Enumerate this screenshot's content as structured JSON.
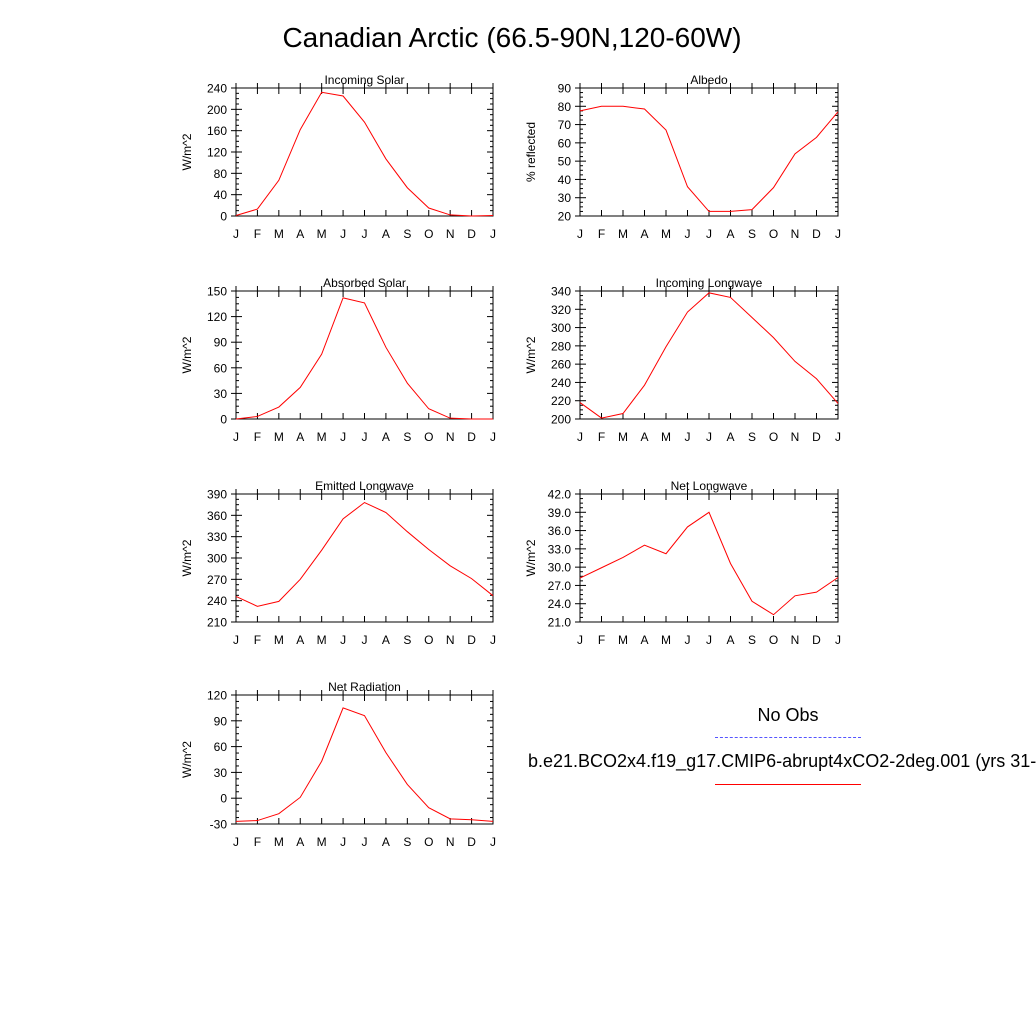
{
  "page": {
    "title": "Canadian Arctic (66.5-90N,120-60W)"
  },
  "legend": {
    "obs_label": "No Obs",
    "model_label": "b.e21.BCO2x4.f19_g17.CMIP6-abrupt4xCO2-2deg.001 (yrs 31-",
    "obs_color": "#5555ff",
    "model_color": "#ff0000"
  },
  "months": [
    "J",
    "F",
    "M",
    "A",
    "M",
    "J",
    "J",
    "A",
    "S",
    "O",
    "N",
    "D",
    "J"
  ],
  "chart_data": [
    {
      "type": "line",
      "title": "Incoming Solar",
      "ylabel": "W/m^2",
      "ylim": [
        0,
        240
      ],
      "yticks": [
        "0",
        "40",
        "80",
        "120",
        "160",
        "200",
        "240"
      ],
      "series": [
        {
          "values": [
            1,
            13,
            67,
            162,
            232,
            225,
            176,
            107,
            53,
            15,
            2,
            0,
            1
          ]
        }
      ]
    },
    {
      "type": "line",
      "title": "Albedo",
      "ylabel": "% reflected",
      "ylim": [
        20,
        90
      ],
      "yticks": [
        "20",
        "30",
        "40",
        "50",
        "60",
        "70",
        "80",
        "90"
      ],
      "series": [
        {
          "values": [
            77.5,
            80,
            80,
            78.5,
            67,
            36,
            22.5,
            22.5,
            23.5,
            35.5,
            54,
            63,
            77
          ]
        }
      ]
    },
    {
      "type": "line",
      "title": "Absorbed Solar",
      "ylabel": "W/m^2",
      "ylim": [
        0,
        150
      ],
      "yticks": [
        "0",
        "30",
        "60",
        "90",
        "120",
        "150"
      ],
      "series": [
        {
          "values": [
            0,
            3,
            14,
            37,
            76,
            142,
            136,
            84,
            42,
            12,
            1,
            0,
            0
          ]
        }
      ]
    },
    {
      "type": "line",
      "title": "Incoming Longwave",
      "ylabel": "W/m^2",
      "ylim": [
        200,
        340
      ],
      "yticks": [
        "200",
        "220",
        "240",
        "260",
        "280",
        "300",
        "320",
        "340"
      ],
      "series": [
        {
          "values": [
            218,
            201,
            206,
            237,
            279,
            317,
            338,
            333,
            311,
            289,
            263,
            244,
            217
          ]
        }
      ]
    },
    {
      "type": "line",
      "title": "Emitted Longwave",
      "ylabel": "W/m^2",
      "ylim": [
        210,
        390
      ],
      "yticks": [
        "210",
        "240",
        "270",
        "300",
        "330",
        "360",
        "390"
      ],
      "series": [
        {
          "values": [
            246,
            232,
            239,
            270,
            311,
            355,
            378,
            364,
            337,
            312,
            289,
            271,
            247
          ]
        }
      ]
    },
    {
      "type": "line",
      "title": "Net Longwave",
      "ylabel": "W/m^2",
      "ylim": [
        21,
        42
      ],
      "yticks": [
        "21.0",
        "24.0",
        "27.0",
        "30.0",
        "33.0",
        "36.0",
        "39.0",
        "42.0"
      ],
      "series": [
        {
          "values": [
            28.2,
            29.9,
            31.6,
            33.6,
            32.2,
            36.6,
            39.0,
            30.6,
            24.4,
            22.2,
            25.3,
            25.9,
            28.3
          ]
        }
      ]
    },
    {
      "type": "line",
      "title": "Net Radiation",
      "ylabel": "W/m^2",
      "ylim": [
        -30,
        120
      ],
      "yticks": [
        "-30",
        "0",
        "30",
        "60",
        "90",
        "120"
      ],
      "series": [
        {
          "values": [
            -27,
            -26,
            -18,
            1,
            43,
            105,
            96,
            53,
            16,
            -11,
            -24,
            -25,
            -27
          ]
        }
      ]
    }
  ]
}
